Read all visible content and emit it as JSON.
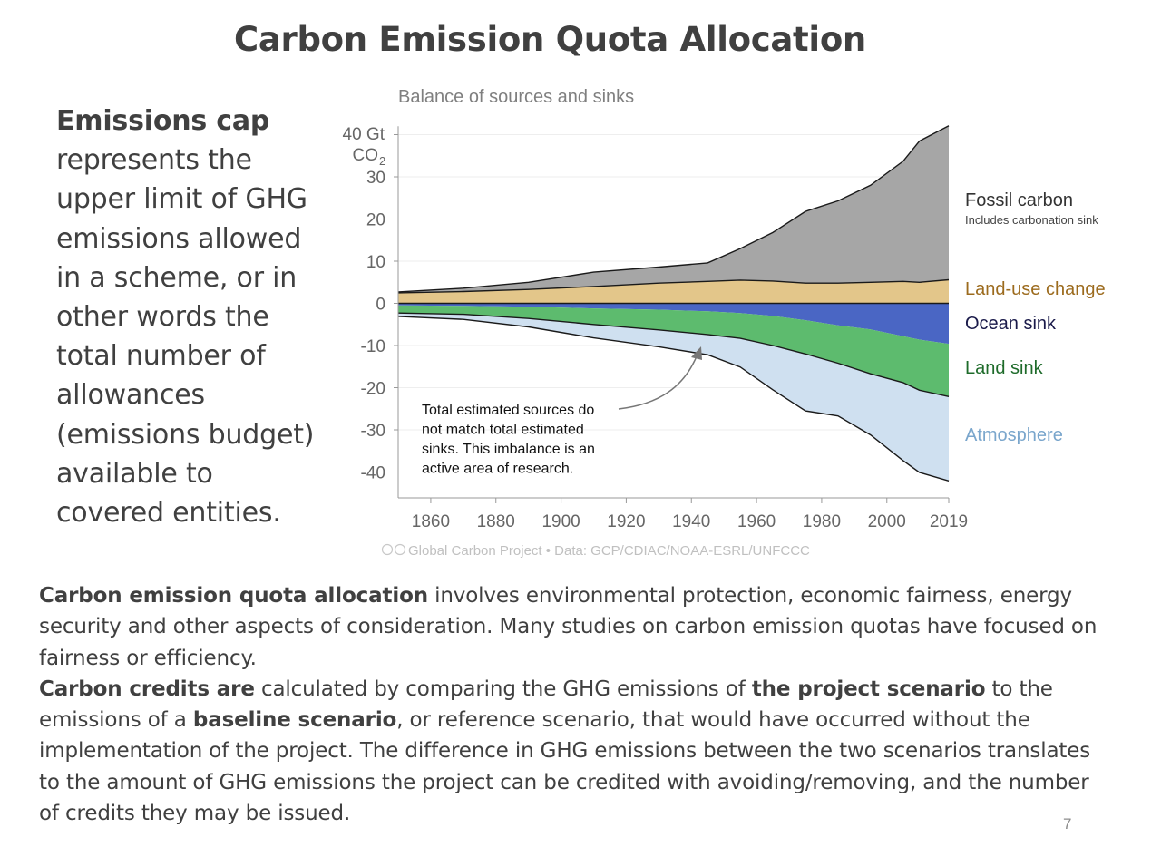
{
  "slide": {
    "title": "Carbon Emission Quota Allocation",
    "page_number": "7"
  },
  "left_text": {
    "bold": "Emissions cap",
    "rest": " represents the upper limit of GHG emissions allowed in a scheme, or in other words the total number of allowances (emissions budget) available to covered entities."
  },
  "body": {
    "p1_bold": "Carbon emission quota allocation",
    "p1_rest": " involves environmental protection, economic fairness, energy security and other aspects of consideration. Many studies on carbon emission quotas have focused on fairness or efficiency.",
    "p2_bold1": "Carbon credits are",
    "p2_text1": " calculated by comparing the GHG emissions of ",
    "p2_bold2": "the project scenario",
    "p2_text2": " to the emissions of a ",
    "p2_bold3": "baseline scenario",
    "p2_text3": ", or reference scenario, that would have occurred without the implementation of the project. The difference in GHG emissions between the two scenarios translates to the amount of GHG emissions the project can be credited with avoiding/removing, and the number of credits they may be issued."
  },
  "chart_data": {
    "type": "area",
    "title": "Balance of sources and sinks",
    "ylabel_line1": "40 Gt",
    "ylabel_line2": "CO",
    "ylabel_sub": "2",
    "ylim": [
      -45,
      42
    ],
    "xlim": [
      1850,
      2019
    ],
    "y_ticks": [
      "40",
      "30",
      "20",
      "10",
      "0",
      "-10",
      "-20",
      "-30",
      "-40"
    ],
    "x_ticks": [
      "1860",
      "1880",
      "1900",
      "1920",
      "1940",
      "1960",
      "1980",
      "2000",
      "2019"
    ],
    "grid": true,
    "legend_position": "right",
    "annotation": {
      "lines": [
        "Total estimated sources do",
        "not match total estimated",
        "sinks. This imbalance is an",
        "active area of research."
      ]
    },
    "footer": "Global Carbon Project  •  Data: GCP/CDIAC/NOAA-ESRL/UNFCCC",
    "x": [
      1850,
      1870,
      1890,
      1910,
      1930,
      1945,
      1955,
      1965,
      1975,
      1985,
      1995,
      2005,
      2010,
      2019
    ],
    "series": [
      {
        "name": "Fossil carbon",
        "sublabel": "Includes carbonation sink",
        "color": "#a6a6a6",
        "label_color": "#333333",
        "values": [
          0.2,
          0.8,
          1.7,
          3.4,
          3.8,
          4.4,
          7.5,
          11.5,
          17.0,
          19.5,
          23.0,
          28.5,
          33.5,
          36.5
        ]
      },
      {
        "name": "Land-use change",
        "color": "#e3c68a",
        "label_color": "#9c6b1e",
        "values": [
          2.5,
          2.8,
          3.3,
          4.0,
          4.8,
          5.2,
          5.5,
          5.3,
          4.8,
          4.8,
          5.0,
          5.2,
          5.0,
          5.6
        ]
      },
      {
        "name": "Ocean sink",
        "color": "#4a66c4",
        "label_color": "#1a1a4a",
        "values": [
          -0.5,
          -0.6,
          -0.8,
          -1.2,
          -1.5,
          -1.9,
          -2.3,
          -3.0,
          -4.0,
          -5.2,
          -6.2,
          -7.8,
          -8.6,
          -9.6
        ]
      },
      {
        "name": "Land sink",
        "color": "#5dbb6e",
        "label_color": "#1e6b2a",
        "values": [
          -1.8,
          -2.0,
          -2.8,
          -3.8,
          -4.8,
          -5.5,
          -6.0,
          -7.0,
          -8.0,
          -9.0,
          -10.5,
          -11.0,
          -12.0,
          -12.5
        ]
      },
      {
        "name": "Atmosphere",
        "color": "#cfe0f0",
        "label_color": "#7aa6cc",
        "values": [
          -0.8,
          -1.2,
          -2.0,
          -3.2,
          -4.0,
          -4.8,
          -6.8,
          -10.5,
          -13.5,
          -12.5,
          -14.5,
          -18.5,
          -19.5,
          -20.0
        ]
      }
    ]
  }
}
